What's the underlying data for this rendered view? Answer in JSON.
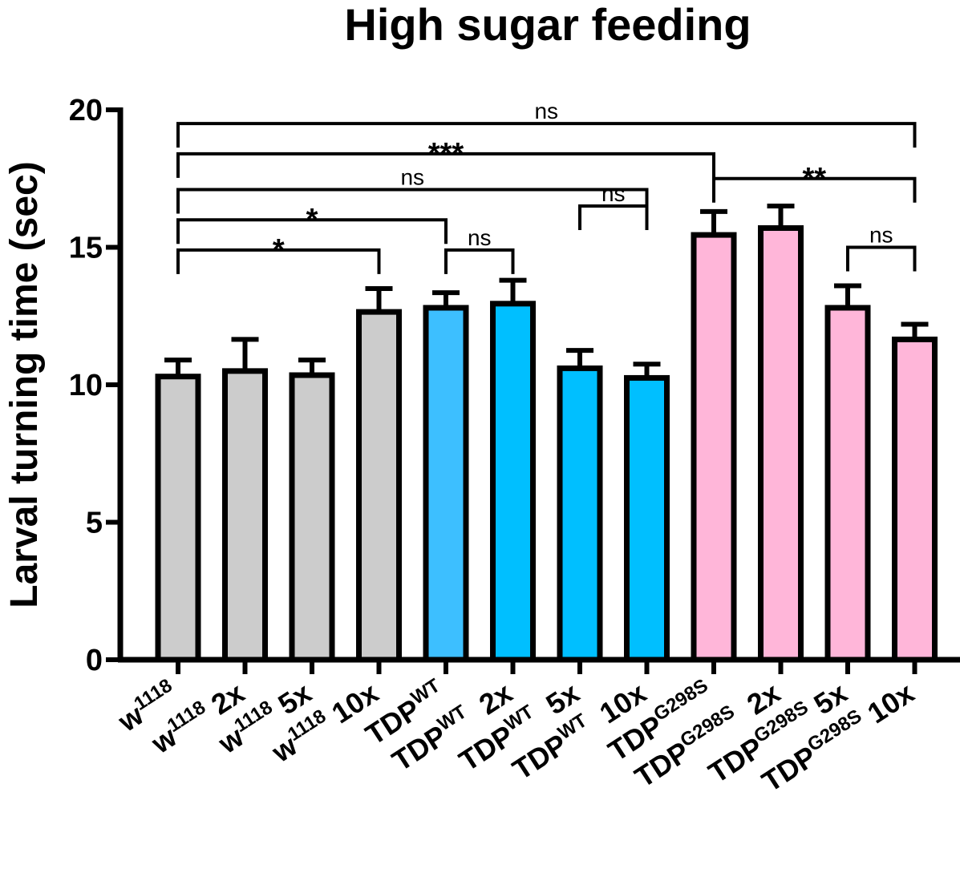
{
  "chart_data": {
    "type": "bar",
    "title": "High sugar feeding",
    "ylabel": "Larval turning time (sec)",
    "xlabel": "",
    "ylim": [
      0,
      20
    ],
    "yticks": [
      0,
      5,
      10,
      15,
      20
    ],
    "categories": [
      {
        "base": "w",
        "sup": "1118",
        "suffix": ""
      },
      {
        "base": "w",
        "sup": "1118",
        "suffix": " 2x"
      },
      {
        "base": "w",
        "sup": "1118",
        "suffix": " 5x"
      },
      {
        "base": "w",
        "sup": "1118",
        "suffix": " 10x"
      },
      {
        "base": "TDP",
        "sup": "WT",
        "suffix": ""
      },
      {
        "base": "TDP",
        "sup": "WT",
        "suffix": "  2x"
      },
      {
        "base": "TDP",
        "sup": "WT",
        "suffix": "  5x"
      },
      {
        "base": "TDP",
        "sup": "WT",
        "suffix": "  10x"
      },
      {
        "base": "TDP",
        "sup": "G298S",
        "suffix": ""
      },
      {
        "base": "TDP",
        "sup": "G298S",
        "suffix": "  2x"
      },
      {
        "base": "TDP",
        "sup": "G298S",
        "suffix": " 5x"
      },
      {
        "base": "TDP",
        "sup": "G298S",
        "suffix": " 10x"
      }
    ],
    "values": [
      10.3,
      10.5,
      10.35,
      12.65,
      12.8,
      12.95,
      10.6,
      10.25,
      15.45,
      15.7,
      12.8,
      11.65
    ],
    "errors": [
      0.6,
      1.15,
      0.55,
      0.85,
      0.55,
      0.85,
      0.65,
      0.5,
      0.85,
      0.8,
      0.8,
      0.55
    ],
    "colors": [
      "#cccccc",
      "#cccccc",
      "#cccccc",
      "#cccccc",
      "#3dbfff",
      "#00bfff",
      "#00bfff",
      "#00bfff",
      "#ffb6d9",
      "#ffb6d9",
      "#ffb6d9",
      "#ffb6d9"
    ],
    "comparisons": [
      {
        "from": 0,
        "to": 11,
        "y": 19.5,
        "label": "ns"
      },
      {
        "from": 0,
        "to": 8,
        "y": 18.4,
        "label": "***"
      },
      {
        "from": 8,
        "to": 11,
        "y": 17.5,
        "label": "**"
      },
      {
        "from": 0,
        "to": 7,
        "y": 17.1,
        "label": "ns"
      },
      {
        "from": 0,
        "to": 4,
        "y": 16.0,
        "label": "*"
      },
      {
        "from": 0,
        "to": 3,
        "y": 14.9,
        "label": "*"
      },
      {
        "from": 4,
        "to": 5,
        "y": 14.9,
        "label": "ns"
      },
      {
        "from": 6,
        "to": 7,
        "y": 16.5,
        "label": "ns"
      },
      {
        "from": 10,
        "to": 11,
        "y": 15.0,
        "label": "ns"
      }
    ]
  }
}
